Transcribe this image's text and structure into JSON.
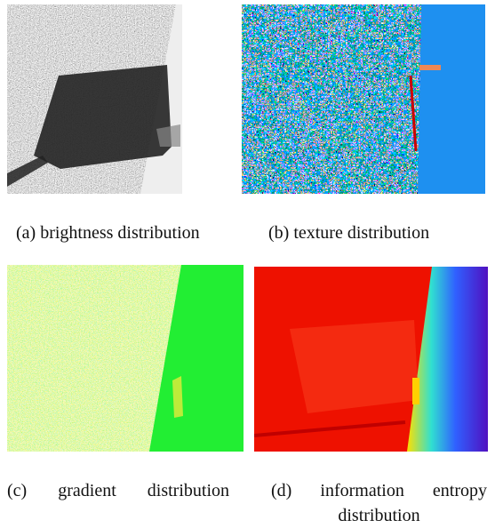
{
  "panels": [
    {
      "caption": "(a) brightness distribution"
    },
    {
      "caption": "(b) texture distribution"
    },
    {
      "caption": "(c) gradient distribution"
    },
    {
      "caption": "(d) information entropy distribution"
    }
  ]
}
